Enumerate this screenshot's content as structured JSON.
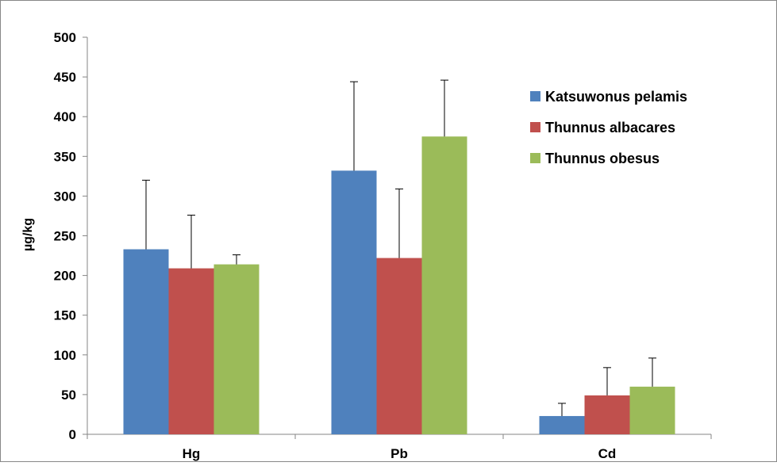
{
  "chart_data": {
    "type": "bar",
    "title": "",
    "xlabel": "",
    "ylabel": "µg/kg",
    "ylim": [
      0,
      500
    ],
    "yticks": [
      0,
      50,
      100,
      150,
      200,
      250,
      300,
      350,
      400,
      450,
      500
    ],
    "grid": false,
    "legend_position": "top-right",
    "categories": [
      "Hg",
      "Pb",
      "Cd"
    ],
    "series": [
      {
        "name": "Katsuwonus pelamis",
        "color": "#4F81BD",
        "values": [
          233,
          332,
          23
        ],
        "error": [
          87,
          112,
          16
        ]
      },
      {
        "name": "Thunnus albacares",
        "color": "#C0504D",
        "values": [
          209,
          222,
          49
        ],
        "error": [
          67,
          87,
          35
        ]
      },
      {
        "name": "Thunnus obesus",
        "color": "#9BBB59",
        "values": [
          214,
          375,
          60
        ],
        "error": [
          12,
          71,
          36
        ]
      }
    ]
  }
}
